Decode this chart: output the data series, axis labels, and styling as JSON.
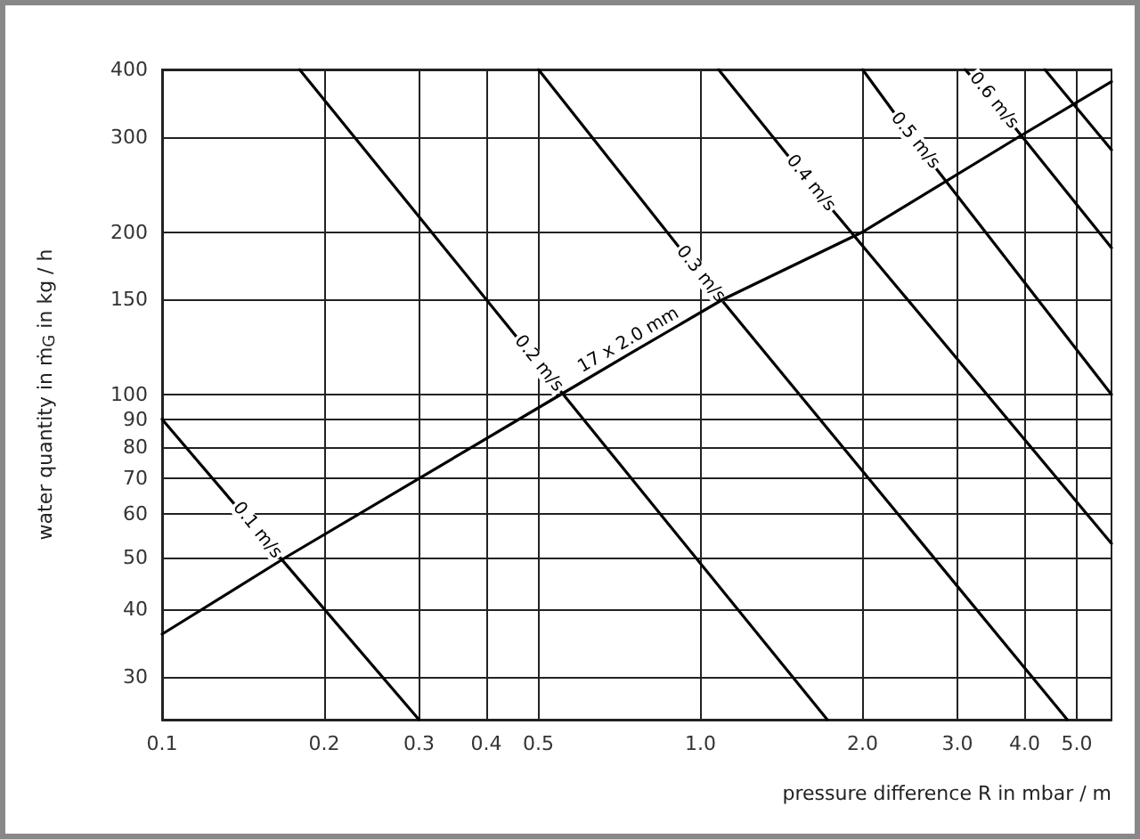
{
  "chart_data": {
    "type": "line",
    "xlabel": "pressure difference R in mbar / m",
    "ylabel": "water quantity in ṁ$_{G}$ in kg / h",
    "log": "xy",
    "grid": true,
    "legend": false,
    "marker": "none",
    "line_style": "solid",
    "xlim": [
      0.1,
      5.8
    ],
    "ylim": [
      25,
      400
    ],
    "xticks": [
      0.1,
      0.2,
      0.3,
      0.4,
      0.5,
      {
        "value": 1,
        "label": "1.0"
      },
      {
        "value": 2,
        "label": "2.0"
      },
      {
        "value": 3,
        "label": "3.0"
      },
      {
        "value": 4,
        "label": "4.0"
      },
      {
        "value": 5,
        "label": "5.0"
      }
    ],
    "yticks": [
      30,
      40,
      50,
      60,
      70,
      80,
      90,
      100,
      150,
      200,
      300,
      400
    ],
    "series": [
      {
        "name": "0.1 m/s",
        "color": "#000000",
        "x": [
          0.1,
          0.15,
          0.3
        ],
        "values": [
          90,
          56,
          25
        ]
      },
      {
        "name": "0.2 m/s",
        "color": "#000000",
        "x": [
          0.18,
          0.5,
          1.72
        ],
        "values": [
          400,
          114,
          25
        ]
      },
      {
        "name": "0.3 m/s",
        "color": "#000000",
        "x": [
          0.5,
          1.0,
          4.8
        ],
        "values": [
          400,
          167,
          25
        ]
      },
      {
        "name": "0.4 m/s",
        "color": "#000000",
        "x": [
          1.08,
          1.6,
          5.8
        ],
        "values": [
          400,
          246,
          53
        ]
      },
      {
        "name": "0.5 m/s",
        "color": "#000000",
        "x": [
          2.0,
          2.5,
          5.8
        ],
        "values": [
          400,
          295,
          100
        ]
      },
      {
        "name": "0.6 m/s",
        "color": "#000000",
        "x": [
          3.1,
          3.5,
          5.8
        ],
        "values": [
          400,
          350,
          187
        ]
      },
      {
        "color": "#000000",
        "x": [
          4.36,
          5.8
        ],
        "values": [
          400,
          284
        ]
      },
      {
        "name": "17 x 2.0 mm",
        "color": "#000000",
        "x": [
          0.1,
          0.17,
          0.55,
          0.75,
          1.1,
          2.0,
          3.9,
          5.8
        ],
        "values": [
          36,
          50,
          100,
          120,
          150,
          200,
          300,
          380
        ]
      }
    ]
  }
}
